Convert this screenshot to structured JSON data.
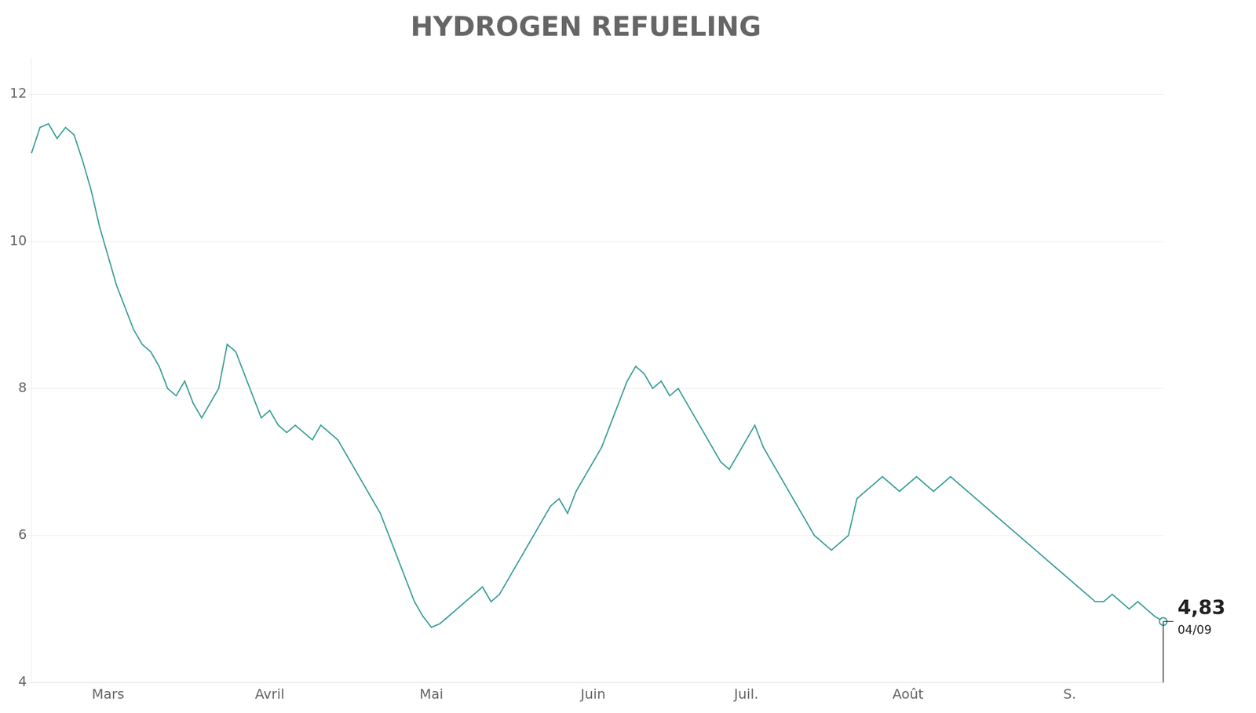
{
  "chart_data": {
    "type": "line",
    "title": "HYDROGEN REFUELING",
    "categories": [
      null,
      null,
      null,
      null,
      null,
      null,
      null,
      null,
      null,
      "Mars",
      null,
      null,
      null,
      null,
      null,
      null,
      null,
      null,
      null,
      null,
      null,
      null,
      null,
      null,
      null,
      null,
      null,
      null,
      "Avril",
      null,
      null,
      null,
      null,
      null,
      null,
      null,
      null,
      null,
      null,
      null,
      null,
      null,
      null,
      null,
      null,
      null,
      null,
      "Mai",
      null,
      null,
      null,
      null,
      null,
      null,
      null,
      null,
      null,
      null,
      null,
      null,
      null,
      null,
      null,
      null,
      null,
      null,
      "Juin",
      null,
      null,
      null,
      null,
      null,
      null,
      null,
      null,
      null,
      null,
      null,
      null,
      null,
      null,
      null,
      null,
      null,
      "Juil.",
      null,
      null,
      null,
      null,
      null,
      null,
      null,
      null,
      null,
      null,
      null,
      null,
      null,
      null,
      null,
      null,
      null,
      null,
      "Août",
      null,
      null,
      null,
      null,
      null,
      null,
      null,
      null,
      null,
      null,
      null,
      null,
      null,
      null,
      null,
      null,
      null,
      null,
      "S.",
      null,
      null,
      null,
      null,
      null,
      null,
      null,
      null,
      null,
      null,
      null
    ],
    "values": [
      11.2,
      11.55,
      11.6,
      11.4,
      11.55,
      11.45,
      11.1,
      10.7,
      10.2,
      9.8,
      9.4,
      9.1,
      8.8,
      8.6,
      8.5,
      8.3,
      8.0,
      7.9,
      8.1,
      7.8,
      7.6,
      7.8,
      8.0,
      8.6,
      8.5,
      8.2,
      7.9,
      7.6,
      7.7,
      7.5,
      7.4,
      7.5,
      7.4,
      7.3,
      7.5,
      7.4,
      7.3,
      7.1,
      6.9,
      6.7,
      6.5,
      6.3,
      6.0,
      5.7,
      5.4,
      5.1,
      4.9,
      4.75,
      4.8,
      4.9,
      5.0,
      5.1,
      5.2,
      5.3,
      5.1,
      5.2,
      5.4,
      5.6,
      5.8,
      6.0,
      6.2,
      6.4,
      6.5,
      6.3,
      6.6,
      6.8,
      7.0,
      7.2,
      7.5,
      7.8,
      8.1,
      8.3,
      8.2,
      8.0,
      8.1,
      7.9,
      8.0,
      7.8,
      7.6,
      7.4,
      7.2,
      7.0,
      6.9,
      7.1,
      7.3,
      7.5,
      7.2,
      7.0,
      6.8,
      6.6,
      6.4,
      6.2,
      6.0,
      5.9,
      5.8,
      5.9,
      6.0,
      6.5,
      6.6,
      6.7,
      6.8,
      6.7,
      6.6,
      6.7,
      6.8,
      6.7,
      6.6,
      6.7,
      6.8,
      6.7,
      6.6,
      6.5,
      6.4,
      6.3,
      6.2,
      6.1,
      6.0,
      5.9,
      5.8,
      5.7,
      5.6,
      5.5,
      5.4,
      5.3,
      5.2,
      5.1,
      5.1,
      5.2,
      5.1,
      5.0,
      5.1,
      5.0,
      4.9,
      4.83
    ],
    "color": "#3d9e99",
    "ylim": [
      4.0,
      12.5
    ],
    "yticks": [
      4,
      6,
      8,
      10,
      12
    ],
    "grid": true,
    "annotations": [
      "4,83",
      "04/09"
    ]
  }
}
